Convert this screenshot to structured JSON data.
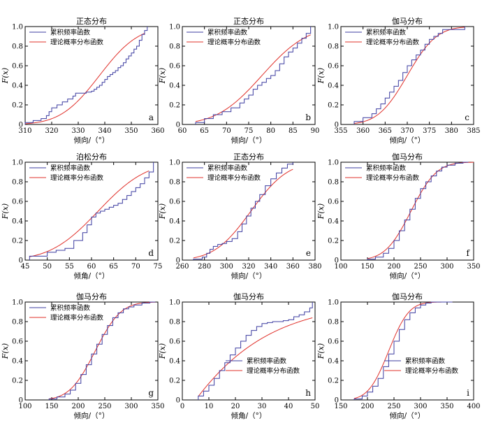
{
  "figure": {
    "legend": {
      "empirical": "累积频率函数",
      "theoretical": "理论概率分布函数"
    },
    "colors": {
      "empirical": "#3c3ca0",
      "theoretical": "#e0302a"
    }
  },
  "chart_data": [
    {
      "panel": "a",
      "type": "line",
      "title": "正态分布",
      "xlabel": "倾向/（°）",
      "ylabel": "F(x)",
      "distribution": "normal",
      "params": {
        "mean": 338,
        "sd": 11.5
      },
      "xlim": [
        310,
        360
      ],
      "xticks": [
        310,
        320,
        330,
        340,
        350,
        360
      ],
      "ylim": [
        0,
        1.0
      ],
      "yticks": [
        0,
        0.2,
        0.4,
        0.6,
        0.8,
        1.0
      ],
      "ytick_labels": [
        "0",
        "0.2",
        "0.4",
        "0.6",
        "0.8",
        "1.0"
      ],
      "theory_range": [
        310,
        355
      ],
      "legend_position": "top-left",
      "series": [
        {
          "name": "累积频率函数",
          "x": [
            310,
            313,
            316,
            318,
            319,
            320,
            322,
            324,
            326,
            328,
            329,
            331,
            333,
            335,
            336,
            337,
            338,
            339,
            340,
            341,
            342,
            343,
            344,
            345,
            346,
            347,
            348,
            349,
            350,
            351,
            352,
            353,
            354,
            355,
            356
          ],
          "y": [
            0.02,
            0.04,
            0.06,
            0.09,
            0.13,
            0.17,
            0.2,
            0.23,
            0.26,
            0.29,
            0.32,
            0.32,
            0.33,
            0.34,
            0.36,
            0.38,
            0.4,
            0.43,
            0.46,
            0.49,
            0.51,
            0.53,
            0.55,
            0.58,
            0.6,
            0.63,
            0.67,
            0.7,
            0.73,
            0.77,
            0.8,
            0.86,
            0.92,
            0.96,
            1.0
          ]
        },
        {
          "name": "理论概率分布函数",
          "model": "normal"
        }
      ]
    },
    {
      "panel": "b",
      "type": "line",
      "title": "正态分布",
      "xlabel": "倾向/（°）",
      "ylabel": "F(x)",
      "distribution": "normal",
      "params": {
        "mean": 78,
        "sd": 8
      },
      "xlim": [
        60,
        90
      ],
      "xticks": [
        60,
        65,
        70,
        75,
        80,
        85,
        90
      ],
      "ylim": [
        0,
        1.0
      ],
      "yticks": [
        0,
        0.2,
        0.4,
        0.6,
        0.8,
        1.0
      ],
      "ytick_labels": [
        "0",
        "0.2",
        "0.4",
        "0.6",
        "0.8",
        "1.0"
      ],
      "theory_range": [
        63,
        89
      ],
      "legend_position": "top-left",
      "series": [
        {
          "name": "累积频率函数",
          "x": [
            63,
            65,
            67,
            69,
            71,
            73,
            74,
            75,
            76,
            77,
            78,
            79,
            80,
            81,
            82,
            83,
            84,
            85,
            86,
            87,
            88,
            89
          ],
          "y": [
            0.02,
            0.06,
            0.1,
            0.13,
            0.17,
            0.22,
            0.26,
            0.3,
            0.36,
            0.4,
            0.43,
            0.47,
            0.5,
            0.55,
            0.62,
            0.69,
            0.74,
            0.78,
            0.83,
            0.88,
            0.93,
            1.0
          ]
        },
        {
          "name": "理论概率分布函数",
          "model": "normal"
        }
      ]
    },
    {
      "panel": "c",
      "type": "line",
      "title": "伽马分布",
      "xlabel": "倾向/（°）",
      "ylabel": "F(x)",
      "distribution": "normal",
      "params": {
        "mean": 370,
        "sd": 5.2
      },
      "xlim": [
        355,
        385
      ],
      "xticks": [
        355,
        360,
        365,
        370,
        375,
        380,
        385
      ],
      "ylim": [
        0,
        1.0
      ],
      "yticks": [
        0,
        0.2,
        0.4,
        0.6,
        0.8,
        1.0
      ],
      "ytick_labels": [
        "0",
        "0.2",
        "0.4",
        "0.6",
        "0.8",
        "1.0"
      ],
      "theory_range": [
        358,
        383
      ],
      "legend_position": "top-left",
      "series": [
        {
          "name": "累积频率函数",
          "x": [
            358,
            360,
            362,
            363,
            364,
            365,
            366,
            367,
            368,
            369,
            370,
            371,
            372,
            373,
            374,
            375,
            376,
            377,
            378,
            383
          ],
          "y": [
            0.03,
            0.07,
            0.11,
            0.16,
            0.21,
            0.27,
            0.33,
            0.39,
            0.45,
            0.53,
            0.6,
            0.66,
            0.71,
            0.76,
            0.82,
            0.87,
            0.9,
            0.93,
            0.97,
            1.0
          ]
        },
        {
          "name": "理论概率分布函数",
          "model": "normal"
        }
      ]
    },
    {
      "panel": "d",
      "type": "line",
      "title": "泊松分布",
      "xlabel": "倾角/（°）",
      "ylabel": "F(x)",
      "distribution": "normal",
      "params": {
        "mean": 61.5,
        "sd": 8.5
      },
      "xlim": [
        45,
        75
      ],
      "xticks": [
        45,
        50,
        55,
        60,
        65,
        70,
        75
      ],
      "ylim": [
        0,
        1.0
      ],
      "yticks": [
        0,
        0.2,
        0.4,
        0.6,
        0.8,
        1.0
      ],
      "ytick_labels": [
        "0",
        "0.2",
        "0.4",
        "0.6",
        "0.8",
        "1.0"
      ],
      "theory_range": [
        46,
        73
      ],
      "legend_position": "top-left",
      "series": [
        {
          "name": "累积频率函数",
          "x": [
            46,
            50,
            52,
            54,
            56,
            58,
            59,
            60,
            61,
            62,
            63,
            64,
            65,
            66,
            67,
            68,
            69,
            70,
            71,
            72,
            73,
            74
          ],
          "y": [
            0.04,
            0.08,
            0.1,
            0.12,
            0.2,
            0.28,
            0.36,
            0.44,
            0.48,
            0.5,
            0.52,
            0.54,
            0.56,
            0.58,
            0.62,
            0.66,
            0.7,
            0.74,
            0.78,
            0.84,
            0.9,
            1.0
          ]
        },
        {
          "name": "理论概率分布函数",
          "model": "normal"
        }
      ]
    },
    {
      "panel": "e",
      "type": "line",
      "title": "正态分布",
      "xlabel": "倾向/（°）",
      "ylabel": "F(x)",
      "distribution": "normal",
      "params": {
        "mean": 322,
        "sd": 26
      },
      "xlim": [
        260,
        380
      ],
      "xticks": [
        260,
        280,
        300,
        320,
        340,
        360,
        380
      ],
      "ylim": [
        0,
        1.0
      ],
      "yticks": [
        0,
        0.2,
        0.4,
        0.6,
        0.8,
        1.0
      ],
      "ytick_labels": [
        "0",
        "0.2",
        "0.4",
        "0.6",
        "0.8",
        "1.0"
      ],
      "theory_range": [
        270,
        360
      ],
      "legend_position": "top-left",
      "series": [
        {
          "name": "累积频率函数",
          "x": [
            270,
            278,
            282,
            285,
            288,
            292,
            296,
            300,
            305,
            310,
            314,
            318,
            322,
            326,
            330,
            335,
            340,
            345,
            350,
            355,
            360
          ],
          "y": [
            0.01,
            0.03,
            0.07,
            0.11,
            0.14,
            0.16,
            0.17,
            0.19,
            0.22,
            0.29,
            0.37,
            0.45,
            0.53,
            0.6,
            0.67,
            0.76,
            0.83,
            0.89,
            0.94,
            0.98,
            1.0
          ]
        },
        {
          "name": "理论概率分布函数",
          "model": "normal"
        }
      ]
    },
    {
      "panel": "f",
      "type": "line",
      "title": "伽马分布",
      "xlabel": "倾向/（°）",
      "ylabel": "F(x)",
      "distribution": "normal",
      "params": {
        "mean": 232,
        "sd": 38
      },
      "xlim": [
        100,
        350
      ],
      "xticks": [
        100,
        150,
        200,
        250,
        300,
        350
      ],
      "ylim": [
        0,
        1.0
      ],
      "yticks": [
        0,
        0.2,
        0.4,
        0.6,
        0.8,
        1.0
      ],
      "ytick_labels": [
        "0",
        "0.2",
        "0.4",
        "0.6",
        "0.8",
        "1.0"
      ],
      "theory_range": [
        150,
        350
      ],
      "legend_position": "top-left",
      "series": [
        {
          "name": "累积频率函数",
          "x": [
            150,
            165,
            180,
            190,
            200,
            210,
            220,
            230,
            240,
            250,
            260,
            270,
            280,
            290,
            300,
            315,
            330,
            340
          ],
          "y": [
            0.01,
            0.03,
            0.07,
            0.12,
            0.2,
            0.3,
            0.41,
            0.52,
            0.63,
            0.73,
            0.8,
            0.86,
            0.91,
            0.95,
            0.97,
            0.99,
            1.0,
            1.0
          ]
        },
        {
          "name": "理论概率分布函数",
          "model": "normal"
        }
      ]
    },
    {
      "panel": "g",
      "type": "line",
      "title": "伽马分布",
      "xlabel": "倾向/（°）",
      "ylabel": "F(x)",
      "distribution": "normal",
      "params": {
        "mean": 232,
        "sd": 38
      },
      "xlim": [
        100,
        350
      ],
      "xticks": [
        100,
        150,
        200,
        250,
        300,
        350
      ],
      "ylim": [
        0,
        1.0
      ],
      "yticks": [
        0,
        0.2,
        0.4,
        0.6,
        0.8,
        1.0
      ],
      "ytick_labels": [
        "0",
        "0.2",
        "0.4",
        "0.6",
        "0.8",
        "1.0"
      ],
      "theory_range": [
        145,
        345
      ],
      "legend_position": "top-left",
      "series": [
        {
          "name": "累积频率函数",
          "x": [
            145,
            160,
            175,
            185,
            195,
            205,
            215,
            225,
            235,
            245,
            255,
            265,
            275,
            285,
            295,
            305,
            320,
            335,
            345
          ],
          "y": [
            0.01,
            0.03,
            0.06,
            0.1,
            0.17,
            0.26,
            0.36,
            0.47,
            0.57,
            0.67,
            0.76,
            0.84,
            0.89,
            0.93,
            0.95,
            0.97,
            0.99,
            1.0,
            1.0
          ]
        },
        {
          "name": "理论概率分布函数",
          "model": "normal"
        }
      ]
    },
    {
      "panel": "h",
      "type": "line",
      "title": "伽马分布",
      "xlabel": "倾角/（°）",
      "ylabel": "F(x)",
      "distribution": "gamma-like",
      "params": {
        "scale": 18
      },
      "xlim": [
        0,
        50
      ],
      "xticks": [
        0,
        10,
        20,
        30,
        40,
        50
      ],
      "ylim": [
        0,
        1.0
      ],
      "yticks": [
        0,
        0.2,
        0.4,
        0.6,
        0.8,
        1.0
      ],
      "ytick_labels": [
        "0",
        "0.2",
        "0.4",
        "0.6",
        "0.8",
        "1.0"
      ],
      "theory_range": [
        6,
        49
      ],
      "legend_position": "bottom-right",
      "series": [
        {
          "name": "累积频率函数",
          "x": [
            6,
            8,
            10,
            12,
            14,
            16,
            18,
            20,
            22,
            24,
            26,
            28,
            30,
            32,
            34,
            36,
            38,
            40,
            42,
            44,
            46,
            48,
            49
          ],
          "y": [
            0.04,
            0.09,
            0.15,
            0.22,
            0.3,
            0.38,
            0.46,
            0.53,
            0.6,
            0.66,
            0.71,
            0.75,
            0.78,
            0.79,
            0.8,
            0.8,
            0.81,
            0.82,
            0.85,
            0.87,
            0.9,
            0.94,
            1.0
          ]
        },
        {
          "name": "理论概率分布函数",
          "model": "gamma-like"
        }
      ]
    },
    {
      "panel": "i",
      "type": "line",
      "title": "伽马分布",
      "xlabel": "倾向/（°）",
      "ylabel": "F(x)",
      "distribution": "normal",
      "params": {
        "mean": 240,
        "sd": 30
      },
      "xlim": [
        150,
        400
      ],
      "xticks": [
        150,
        200,
        250,
        300,
        350,
        400
      ],
      "ylim": [
        0,
        1.0
      ],
      "yticks": [
        0,
        0.2,
        0.4,
        0.6,
        0.8,
        1.0
      ],
      "ytick_labels": [
        "0",
        "0.2",
        "0.4",
        "0.6",
        "0.8",
        "1.0"
      ],
      "theory_range": [
        175,
        360
      ],
      "legend_position": "bottom-right",
      "series": [
        {
          "name": "累积频率函数",
          "x": [
            175,
            190,
            200,
            210,
            220,
            230,
            240,
            250,
            260,
            270,
            280,
            290,
            300,
            310,
            320,
            340,
            360
          ],
          "y": [
            0.01,
            0.04,
            0.08,
            0.14,
            0.22,
            0.34,
            0.47,
            0.6,
            0.72,
            0.82,
            0.89,
            0.94,
            0.97,
            0.99,
            1.0,
            1.0,
            1.0
          ]
        },
        {
          "name": "理论概率分布函数",
          "model": "normal"
        }
      ]
    }
  ]
}
